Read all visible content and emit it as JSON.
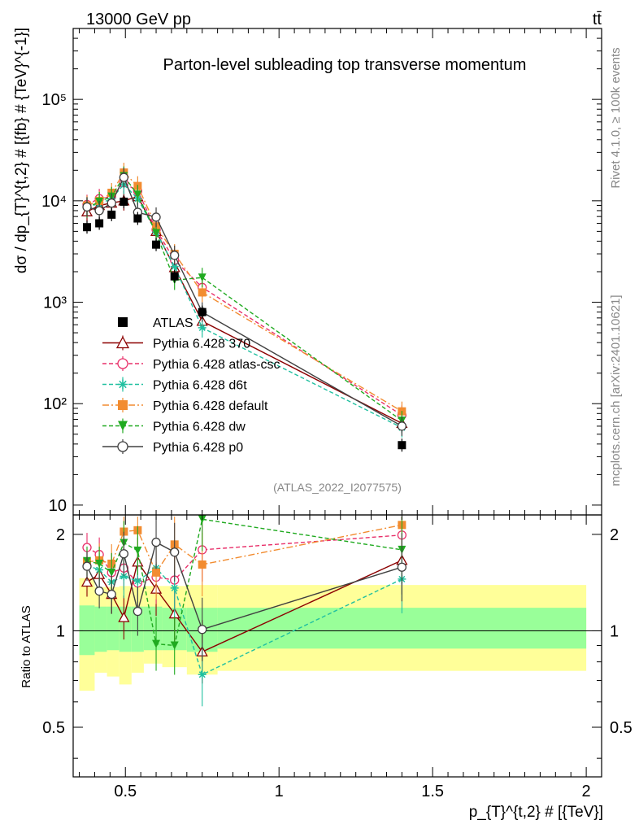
{
  "header": {
    "left": "13000 GeV pp",
    "right": "tt̄"
  },
  "chart_data": [
    {
      "type": "line",
      "title": "Parton-level subleading top transverse momentum",
      "ylabel": "dσ / dp_{T}^{t,2} # [{fb} # {TeV}^{-1}]",
      "xlim": [
        0.33,
        2.05
      ],
      "ylim": [
        8,
        500000
      ],
      "yscale": "log",
      "yticks": [
        {
          "v": 10,
          "label": "10"
        },
        {
          "v": 100,
          "label": "10²"
        },
        {
          "v": 1000,
          "label": "10³"
        },
        {
          "v": 10000,
          "label": "10⁴"
        },
        {
          "v": 100000,
          "label": "10⁵"
        }
      ],
      "analysis_tag": "(ATLAS_2022_I2077575)",
      "side_labels": {
        "top": "Rivet 4.1.0, ≥ 100k events",
        "bottom": "mcplots.cern.ch [arXiv:2401.10621]"
      },
      "data": {
        "name": "ATLAS",
        "x": [
          0.375,
          0.415,
          0.455,
          0.495,
          0.54,
          0.6,
          0.66,
          0.75,
          1.4
        ],
        "y": [
          5500,
          6000,
          7300,
          9800,
          6700,
          3700,
          1800,
          800,
          39
        ]
      },
      "series": [
        {
          "name": "Pythia 6.428 370",
          "color": "#8b0000",
          "style": "solid",
          "marker": "triangle-open",
          "y": [
            7800,
            9000,
            9500,
            10000,
            11000,
            5000,
            2200,
            650,
            64
          ]
        },
        {
          "name": "Pythia 6.428 atlas-csc",
          "color": "#e8306a",
          "style": "dashed",
          "marker": "circle-open",
          "y": [
            9200,
            10500,
            11000,
            15000,
            12500,
            5200,
            2600,
            1400,
            77
          ]
        },
        {
          "name": "Pythia 6.428 d6t",
          "color": "#20c0a0",
          "style": "dashed",
          "marker": "star",
          "y": [
            8800,
            9300,
            10500,
            14500,
            10500,
            4900,
            2250,
            560,
            58
          ]
        },
        {
          "name": "Pythia 6.428 default",
          "color": "#f28c30",
          "style": "dashdot",
          "marker": "square",
          "y": [
            9000,
            10000,
            12000,
            19000,
            14000,
            5600,
            3000,
            1250,
            84
          ]
        },
        {
          "name": "Pythia 6.428 dw",
          "color": "#20aa20",
          "style": "dashed",
          "marker": "triangle-down",
          "y": [
            8500,
            9800,
            11000,
            17500,
            11500,
            4800,
            1650,
            1750,
            68
          ]
        },
        {
          "name": "Pythia 6.428 p0",
          "color": "#404040",
          "style": "solid",
          "marker": "circle-open",
          "y": [
            8700,
            8000,
            9500,
            17000,
            7700,
            6900,
            2900,
            800,
            60
          ]
        }
      ]
    },
    {
      "type": "line",
      "ylabel": "Ratio to ATLAS",
      "xlabel": "p_{T}^{t,2} # [{TeV}]",
      "xlim": [
        0.33,
        2.05
      ],
      "ylim": [
        0.35,
        2.3
      ],
      "yscale": "log",
      "xticks": [
        {
          "v": 0.5,
          "label": "0.5"
        },
        {
          "v": 1,
          "label": "1"
        },
        {
          "v": 1.5,
          "label": "1.5"
        },
        {
          "v": 2,
          "label": "2"
        }
      ],
      "yticks": [
        {
          "v": 0.5,
          "label": "0.5"
        },
        {
          "v": 1,
          "label": "1"
        },
        {
          "v": 2,
          "label": "2"
        }
      ],
      "bands": {
        "edges": [
          0.35,
          0.4,
          0.44,
          0.48,
          0.52,
          0.56,
          0.62,
          0.7,
          0.8,
          2.0
        ],
        "green_lo": [
          0.84,
          0.86,
          0.87,
          0.86,
          0.86,
          0.87,
          0.87,
          0.86,
          0.88
        ],
        "green_hi": [
          1.2,
          1.19,
          1.19,
          1.19,
          1.19,
          1.19,
          1.18,
          1.18,
          1.18
        ],
        "yellow_lo": [
          0.65,
          0.74,
          0.72,
          0.68,
          0.74,
          0.79,
          0.77,
          0.73,
          0.75
        ],
        "yellow_hi": [
          1.46,
          1.37,
          1.37,
          1.38,
          1.37,
          1.38,
          1.38,
          1.39,
          1.39
        ]
      },
      "series": [
        {
          "name": "Pythia 6.428 370",
          "y": [
            1.42,
            1.5,
            1.3,
            1.1,
            1.64,
            1.35,
            1.13,
            0.86,
            1.66
          ]
        },
        {
          "name": "Pythia 6.428 atlas-csc",
          "y": [
            1.82,
            1.73,
            1.52,
            1.57,
            1.41,
            1.47,
            1.44,
            1.79,
            1.99
          ]
        },
        {
          "name": "Pythia 6.428 d6t",
          "y": [
            1.6,
            1.55,
            1.42,
            1.48,
            1.43,
            1.57,
            1.36,
            0.73,
            1.45
          ]
        },
        {
          "name": "Pythia 6.428 default",
          "y": [
            1.64,
            1.66,
            1.62,
            2.04,
            2.06,
            1.52,
            1.86,
            1.61,
            2.14
          ]
        },
        {
          "name": "Pythia 6.428 dw",
          "y": [
            1.65,
            1.62,
            1.52,
            1.88,
            1.78,
            0.91,
            0.9,
            2.23,
            1.79
          ]
        },
        {
          "name": "Pythia 6.428 p0",
          "y": [
            1.59,
            1.33,
            1.3,
            1.74,
            1.15,
            1.89,
            1.76,
            1.01,
            1.58
          ]
        }
      ]
    }
  ]
}
